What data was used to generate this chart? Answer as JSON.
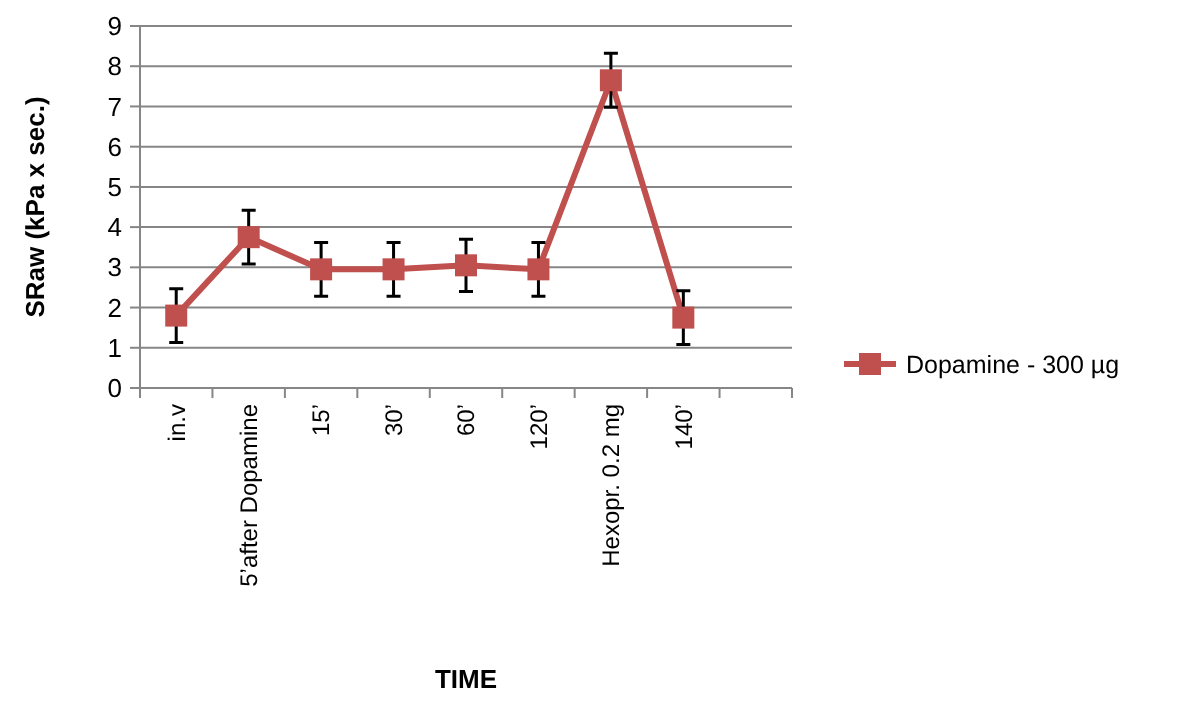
{
  "chart_data": {
    "type": "line",
    "xlabel": "TIME",
    "ylabel": "SRaw (kPa x sec.)",
    "categories": [
      "in.v",
      "5’after Dopamine",
      "15’",
      "30’",
      "60’",
      "120’",
      "Hexopr. 0.2 mg",
      "140’",
      null
    ],
    "series": [
      {
        "name": "Dopamine - 300 µg",
        "color": "#c0504d",
        "values": [
          1.8,
          3.75,
          2.95,
          2.95,
          3.05,
          2.95,
          7.65,
          1.75,
          null
        ],
        "errors": [
          0.67,
          0.67,
          0.67,
          0.67,
          0.65,
          0.67,
          0.67,
          0.67,
          null
        ]
      }
    ],
    "ylim": [
      0,
      9
    ],
    "yticks": [
      0,
      1,
      2,
      3,
      4,
      5,
      6,
      7,
      8,
      9
    ],
    "grid": "y",
    "legend": "right",
    "marker": "square",
    "line_style": "solid"
  }
}
